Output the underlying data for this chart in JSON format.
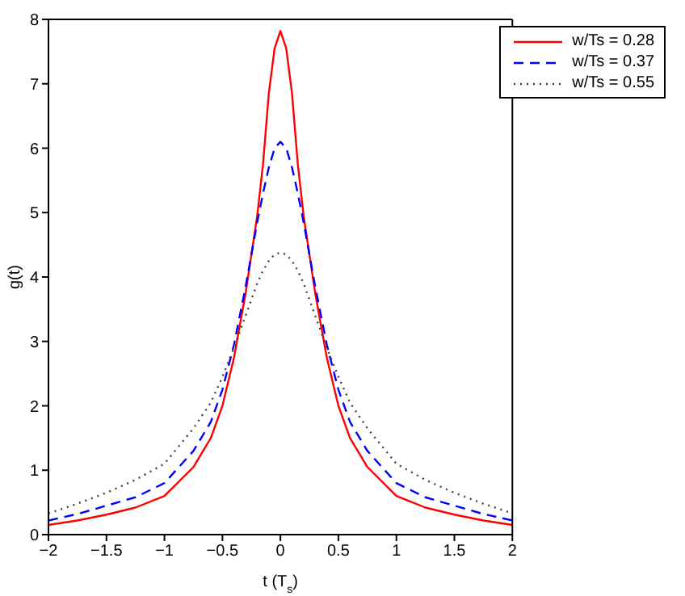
{
  "chart_data": {
    "type": "line",
    "xlabel": "t (T$_{s}$)",
    "ylabel": "g(t)",
    "x": [
      -2,
      -1.75,
      -1.5,
      -1.25,
      -1,
      -0.75,
      -0.6,
      -0.5,
      -0.4,
      -0.3,
      -0.25,
      -0.2,
      -0.15,
      -0.1,
      -0.05,
      0,
      0.05,
      0.1,
      0.15,
      0.2,
      0.25,
      0.3,
      0.4,
      0.5,
      0.6,
      0.75,
      1,
      1.25,
      1.5,
      1.75,
      2
    ],
    "series": [
      {
        "name": "w/Ts = 0.28",
        "color": "#ff0000",
        "line_style": "solid",
        "values": [
          0.15,
          0.22,
          0.31,
          0.42,
          0.6,
          1.05,
          1.5,
          2.0,
          2.75,
          3.75,
          4.35,
          4.95,
          5.75,
          6.85,
          7.55,
          7.82,
          7.55,
          6.85,
          5.75,
          4.95,
          4.35,
          3.75,
          2.75,
          2.0,
          1.5,
          1.05,
          0.6,
          0.42,
          0.31,
          0.22,
          0.15
        ]
      },
      {
        "name": "w/Ts = 0.37",
        "color": "#0000ff",
        "line_style": "dashed",
        "values": [
          0.22,
          0.32,
          0.45,
          0.58,
          0.8,
          1.3,
          1.75,
          2.25,
          2.95,
          3.85,
          4.35,
          4.85,
          5.3,
          5.7,
          6.0,
          6.1,
          6.0,
          5.7,
          5.3,
          4.85,
          4.35,
          3.85,
          2.95,
          2.25,
          1.75,
          1.3,
          0.8,
          0.58,
          0.45,
          0.32,
          0.22
        ]
      },
      {
        "name": "w/Ts = 0.55",
        "color": "#404040",
        "line_style": "dotted",
        "values": [
          0.33,
          0.48,
          0.65,
          0.85,
          1.1,
          1.65,
          2.05,
          2.45,
          2.9,
          3.4,
          3.65,
          3.9,
          4.1,
          4.25,
          4.35,
          4.38,
          4.35,
          4.25,
          4.1,
          3.9,
          3.65,
          3.4,
          2.9,
          2.45,
          2.05,
          1.65,
          1.1,
          0.85,
          0.65,
          0.48,
          0.33
        ]
      }
    ],
    "xlim": [
      -2,
      2
    ],
    "xticks": [
      -2,
      -1.5,
      -1,
      -0.5,
      0,
      0.5,
      1,
      1.5,
      2
    ],
    "ylim": [
      0,
      8
    ],
    "yticks": [
      0,
      1,
      2,
      3,
      4,
      5,
      6,
      7,
      8
    ],
    "legend": "top right",
    "marker": "none",
    "grid": false
  }
}
